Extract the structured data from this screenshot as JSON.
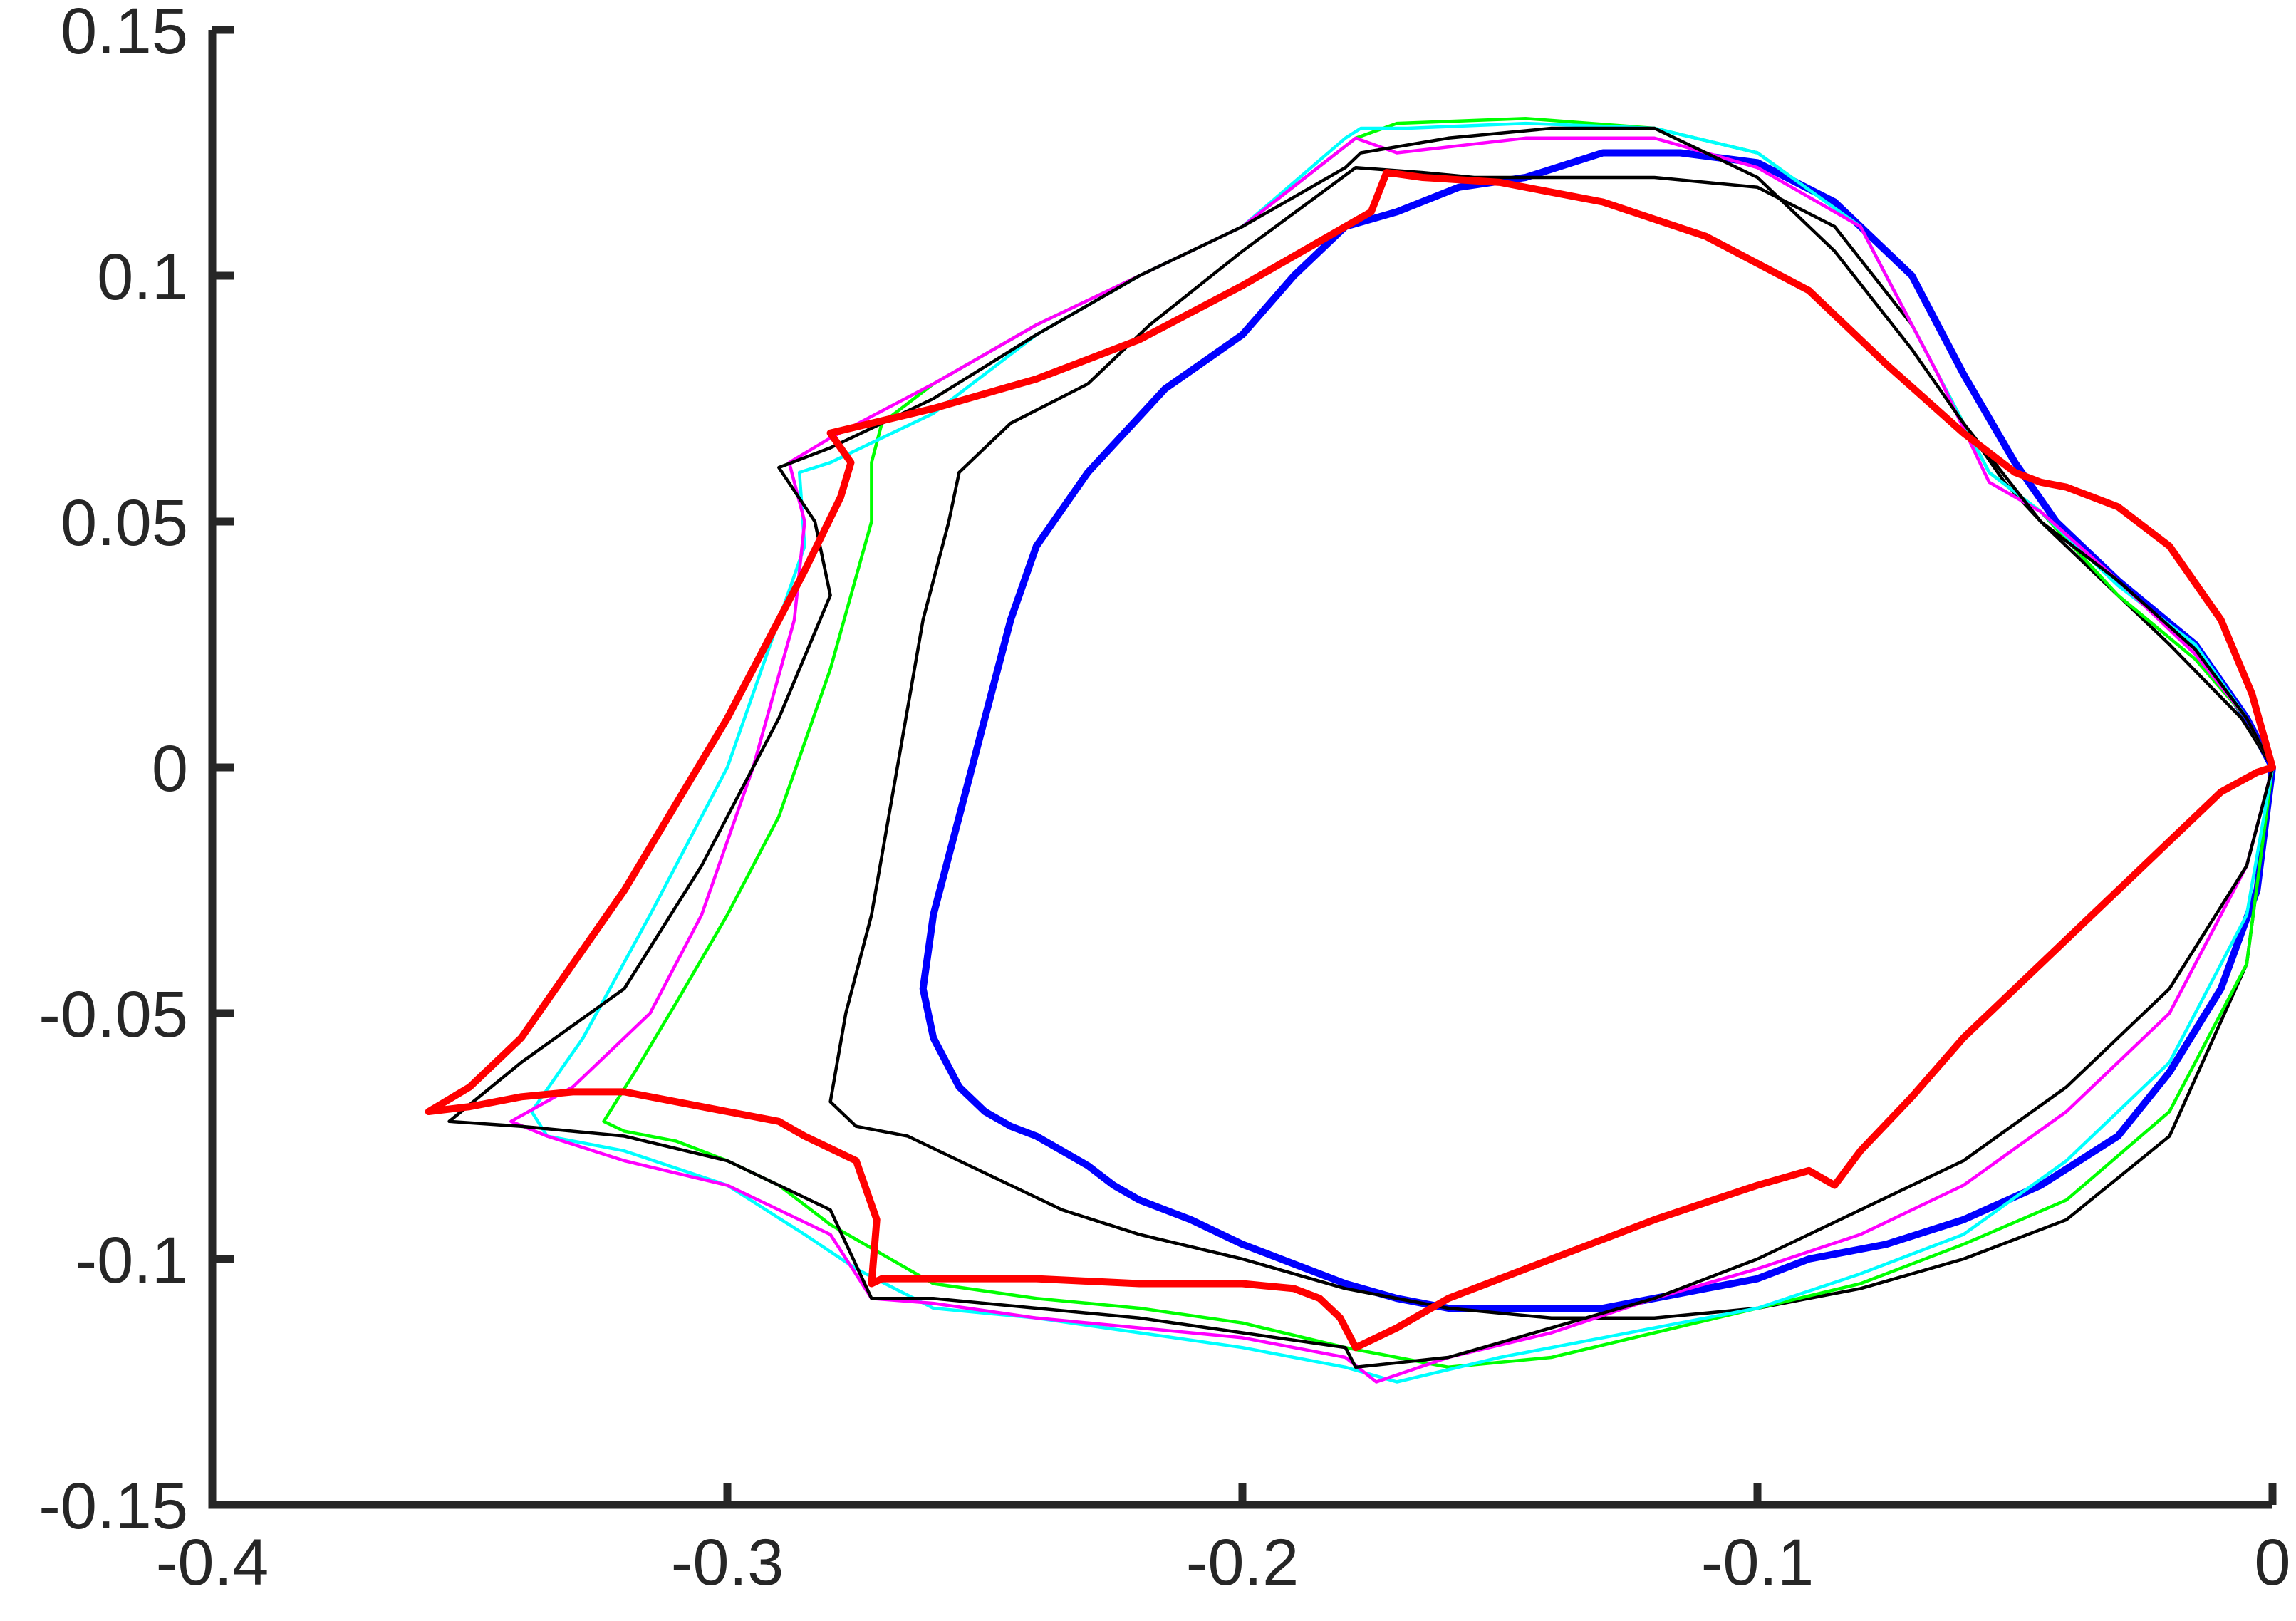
{
  "chart_data": {
    "type": "line",
    "title": "",
    "xlabel": "",
    "ylabel": "",
    "xlim": [
      -0.4,
      0
    ],
    "ylim": [
      -0.15,
      0.15
    ],
    "grid": false,
    "legend": "none",
    "x_ticks": [
      {
        "value": -0.4,
        "label": "-0.4"
      },
      {
        "value": -0.3,
        "label": "-0.3"
      },
      {
        "value": -0.2,
        "label": "-0.2"
      },
      {
        "value": -0.1,
        "label": "-0.1"
      },
      {
        "value": 0,
        "label": "0"
      }
    ],
    "y_ticks": [
      {
        "value": 0.15,
        "label": "0.15"
      },
      {
        "value": 0.1,
        "label": "0.1"
      },
      {
        "value": 0.05,
        "label": "0.05"
      },
      {
        "value": 0,
        "label": "0"
      },
      {
        "value": -0.05,
        "label": "-0.05"
      },
      {
        "value": -0.1,
        "label": "-0.1"
      },
      {
        "value": -0.15,
        "label": "-0.15"
      }
    ],
    "series": [
      {
        "color": "#0000ff",
        "width": "thick",
        "x": [
          0,
          -0.005,
          -0.015,
          -0.03,
          -0.042,
          -0.05,
          -0.06,
          -0.07,
          -0.085,
          -0.1,
          -0.115,
          -0.13,
          -0.145,
          -0.158,
          -0.17,
          -0.18,
          -0.19,
          -0.2,
          -0.215,
          -0.23,
          -0.24,
          -0.245,
          -0.25,
          -0.255,
          -0.26,
          -0.262,
          -0.26,
          -0.255,
          -0.25,
          -0.245,
          -0.24,
          -0.235,
          -0.23,
          -0.225,
          -0.22,
          -0.215,
          -0.21,
          -0.2,
          -0.19,
          -0.18,
          -0.17,
          -0.16,
          -0.15,
          -0.14,
          -0.13,
          -0.12,
          -0.11,
          -0.1,
          -0.09,
          -0.075,
          -0.06,
          -0.045,
          -0.03,
          -0.02,
          -0.01,
          -0.003,
          0
        ],
        "y": [
          0,
          0.01,
          0.025,
          0.038,
          0.05,
          0.062,
          0.08,
          0.1,
          0.115,
          0.123,
          0.125,
          0.125,
          0.12,
          0.118,
          0.113,
          0.11,
          0.1,
          0.088,
          0.077,
          0.06,
          0.045,
          0.03,
          0.01,
          -0.01,
          -0.03,
          -0.045,
          -0.055,
          -0.065,
          -0.07,
          -0.073,
          -0.075,
          -0.078,
          -0.081,
          -0.085,
          -0.088,
          -0.09,
          -0.092,
          -0.097,
          -0.101,
          -0.105,
          -0.108,
          -0.11,
          -0.11,
          -0.11,
          -0.11,
          -0.108,
          -0.106,
          -0.104,
          -0.1,
          -0.097,
          -0.092,
          -0.085,
          -0.075,
          -0.062,
          -0.045,
          -0.025,
          0
        ]
      },
      {
        "color": "#000000",
        "width": "thin",
        "x": [
          0,
          -0.006,
          -0.02,
          -0.035,
          -0.045,
          -0.052,
          -0.06,
          -0.07,
          -0.085,
          -0.1,
          -0.12,
          -0.14,
          -0.155,
          -0.165,
          -0.178,
          -0.2,
          -0.218,
          -0.23,
          -0.245,
          -0.255,
          -0.257,
          -0.262,
          -0.267,
          -0.272,
          -0.277,
          -0.28,
          -0.275,
          -0.265,
          -0.255,
          -0.245,
          -0.235,
          -0.22,
          -0.2,
          -0.18,
          -0.16,
          -0.14,
          -0.12,
          -0.1,
          -0.08,
          -0.06,
          -0.04,
          -0.02,
          -0.005,
          0
        ],
        "y": [
          0,
          0.01,
          0.025,
          0.04,
          0.05,
          0.058,
          0.07,
          0.09,
          0.11,
          0.118,
          0.12,
          0.12,
          0.12,
          0.121,
          0.122,
          0.105,
          0.09,
          0.078,
          0.07,
          0.06,
          0.05,
          0.03,
          0.0,
          -0.03,
          -0.05,
          -0.068,
          -0.073,
          -0.075,
          -0.08,
          -0.085,
          -0.09,
          -0.095,
          -0.1,
          -0.106,
          -0.11,
          -0.112,
          -0.112,
          -0.11,
          -0.106,
          -0.1,
          -0.092,
          -0.075,
          -0.04,
          0
        ]
      },
      {
        "color": "#00ff00",
        "width": "thin",
        "x": [
          0,
          -0.005,
          -0.015,
          -0.03,
          -0.045,
          -0.055,
          -0.065,
          -0.08,
          -0.1,
          -0.12,
          -0.145,
          -0.17,
          -0.178,
          -0.2,
          -0.22,
          -0.24,
          -0.26,
          -0.27,
          -0.272,
          -0.272,
          -0.28,
          -0.29,
          -0.3,
          -0.31,
          -0.318,
          -0.324,
          -0.32,
          -0.31,
          -0.3,
          -0.29,
          -0.28,
          -0.26,
          -0.24,
          -0.22,
          -0.2,
          -0.18,
          -0.16,
          -0.14,
          -0.12,
          -0.1,
          -0.08,
          -0.06,
          -0.04,
          -0.02,
          -0.005,
          0
        ],
        "y": [
          0,
          0.01,
          0.022,
          0.035,
          0.052,
          0.06,
          0.08,
          0.11,
          0.125,
          0.13,
          0.132,
          0.131,
          0.128,
          0.11,
          0.1,
          0.09,
          0.078,
          0.07,
          0.062,
          0.05,
          0.02,
          -0.01,
          -0.03,
          -0.048,
          -0.062,
          -0.072,
          -0.074,
          -0.076,
          -0.08,
          -0.085,
          -0.093,
          -0.105,
          -0.108,
          -0.11,
          -0.113,
          -0.118,
          -0.122,
          -0.12,
          -0.115,
          -0.11,
          -0.105,
          -0.097,
          -0.088,
          -0.07,
          -0.04,
          0
        ]
      },
      {
        "color": "#00ffff",
        "width": "thin",
        "x": [
          0,
          -0.005,
          -0.015,
          -0.03,
          -0.045,
          -0.055,
          -0.065,
          -0.08,
          -0.1,
          -0.12,
          -0.145,
          -0.168,
          -0.177,
          -0.18,
          -0.2,
          -0.22,
          -0.24,
          -0.26,
          -0.28,
          -0.286,
          -0.285,
          -0.29,
          -0.3,
          -0.315,
          -0.328,
          -0.338,
          -0.335,
          -0.32,
          -0.3,
          -0.285,
          -0.275,
          -0.26,
          -0.24,
          -0.22,
          -0.2,
          -0.18,
          -0.17,
          -0.15,
          -0.12,
          -0.1,
          -0.08,
          -0.06,
          -0.04,
          -0.02,
          -0.005,
          0
        ],
        "y": [
          0,
          0.01,
          0.025,
          0.037,
          0.052,
          0.06,
          0.08,
          0.11,
          0.125,
          0.13,
          0.131,
          0.13,
          0.13,
          0.128,
          0.11,
          0.1,
          0.088,
          0.072,
          0.062,
          0.06,
          0.045,
          0.03,
          0.0,
          -0.03,
          -0.055,
          -0.07,
          -0.075,
          -0.078,
          -0.085,
          -0.095,
          -0.102,
          -0.11,
          -0.112,
          -0.115,
          -0.118,
          -0.122,
          -0.125,
          -0.12,
          -0.114,
          -0.11,
          -0.103,
          -0.095,
          -0.08,
          -0.06,
          -0.03,
          0
        ]
      },
      {
        "color": "#ff00ff",
        "width": "thin",
        "x": [
          0,
          -0.005,
          -0.015,
          -0.03,
          -0.045,
          -0.055,
          -0.065,
          -0.08,
          -0.1,
          -0.12,
          -0.145,
          -0.17,
          -0.178,
          -0.2,
          -0.22,
          -0.24,
          -0.26,
          -0.28,
          -0.288,
          -0.285,
          -0.287,
          -0.295,
          -0.305,
          -0.315,
          -0.33,
          -0.342,
          -0.335,
          -0.32,
          -0.3,
          -0.28,
          -0.272,
          -0.26,
          -0.24,
          -0.22,
          -0.2,
          -0.18,
          -0.174,
          -0.16,
          -0.14,
          -0.12,
          -0.1,
          -0.08,
          -0.06,
          -0.04,
          -0.02,
          -0.005,
          0
        ],
        "y": [
          0,
          0.01,
          0.023,
          0.038,
          0.052,
          0.058,
          0.08,
          0.11,
          0.122,
          0.128,
          0.128,
          0.125,
          0.128,
          0.11,
          0.1,
          0.09,
          0.078,
          0.067,
          0.062,
          0.05,
          0.03,
          0.0,
          -0.03,
          -0.05,
          -0.065,
          -0.072,
          -0.075,
          -0.08,
          -0.085,
          -0.095,
          -0.108,
          -0.109,
          -0.112,
          -0.114,
          -0.116,
          -0.12,
          -0.125,
          -0.12,
          -0.115,
          -0.108,
          -0.102,
          -0.095,
          -0.085,
          -0.07,
          -0.05,
          -0.02,
          0
        ]
      },
      {
        "color": "#000000",
        "width": "thin",
        "x": [
          0,
          -0.005,
          -0.015,
          -0.03,
          -0.045,
          -0.06,
          -0.07,
          -0.085,
          -0.1,
          -0.12,
          -0.14,
          -0.16,
          -0.177,
          -0.18,
          -0.2,
          -0.22,
          -0.24,
          -0.26,
          -0.28,
          -0.29,
          -0.283,
          -0.28,
          -0.29,
          -0.305,
          -0.32,
          -0.34,
          -0.354,
          -0.34,
          -0.32,
          -0.3,
          -0.28,
          -0.272,
          -0.26,
          -0.24,
          -0.22,
          -0.2,
          -0.18,
          -0.178,
          -0.16,
          -0.14,
          -0.12,
          -0.1,
          -0.08,
          -0.06,
          -0.04,
          -0.02,
          -0.005,
          0
        ],
        "y": [
          0,
          0.01,
          0.024,
          0.038,
          0.05,
          0.07,
          0.085,
          0.105,
          0.12,
          0.13,
          0.13,
          0.128,
          0.125,
          0.122,
          0.11,
          0.1,
          0.088,
          0.075,
          0.065,
          0.061,
          0.05,
          0.035,
          0.01,
          -0.02,
          -0.045,
          -0.06,
          -0.072,
          -0.073,
          -0.075,
          -0.08,
          -0.09,
          -0.108,
          -0.108,
          -0.11,
          -0.112,
          -0.115,
          -0.118,
          -0.122,
          -0.12,
          -0.114,
          -0.108,
          -0.1,
          -0.09,
          -0.08,
          -0.065,
          -0.045,
          -0.02,
          0
        ]
      },
      {
        "color": "#ff0000",
        "width": "thick",
        "x": [
          0,
          -0.004,
          -0.01,
          -0.02,
          -0.03,
          -0.04,
          -0.045,
          -0.05,
          -0.06,
          -0.075,
          -0.09,
          -0.11,
          -0.13,
          -0.15,
          -0.165,
          -0.172,
          -0.175,
          -0.18,
          -0.2,
          -0.22,
          -0.24,
          -0.26,
          -0.28,
          -0.276,
          -0.278,
          -0.285,
          -0.3,
          -0.32,
          -0.34,
          -0.35,
          -0.358,
          -0.35,
          -0.34,
          -0.33,
          -0.32,
          -0.31,
          -0.3,
          -0.29,
          -0.285,
          -0.275,
          -0.271,
          -0.272,
          -0.27,
          -0.26,
          -0.24,
          -0.22,
          -0.2,
          -0.19,
          -0.185,
          -0.181,
          -0.178,
          -0.17,
          -0.16,
          -0.14,
          -0.12,
          -0.1,
          -0.09,
          -0.085,
          -0.08,
          -0.07,
          -0.06,
          -0.05,
          -0.04,
          -0.03,
          -0.02,
          -0.01,
          -0.003,
          0
        ],
        "y": [
          0,
          0.015,
          0.03,
          0.045,
          0.053,
          0.057,
          0.058,
          0.06,
          0.068,
          0.082,
          0.097,
          0.108,
          0.115,
          0.119,
          0.12,
          0.121,
          0.113,
          0.11,
          0.098,
          0.087,
          0.079,
          0.073,
          0.068,
          0.062,
          0.055,
          0.04,
          0.01,
          -0.025,
          -0.055,
          -0.065,
          -0.07,
          -0.069,
          -0.067,
          -0.066,
          -0.066,
          -0.068,
          -0.07,
          -0.072,
          -0.075,
          -0.08,
          -0.092,
          -0.105,
          -0.104,
          -0.104,
          -0.104,
          -0.105,
          -0.105,
          -0.106,
          -0.108,
          -0.112,
          -0.118,
          -0.114,
          -0.108,
          -0.1,
          -0.092,
          -0.085,
          -0.082,
          -0.085,
          -0.078,
          -0.067,
          -0.055,
          -0.045,
          -0.035,
          -0.025,
          -0.015,
          -0.005,
          -0.001,
          0
        ]
      }
    ]
  }
}
